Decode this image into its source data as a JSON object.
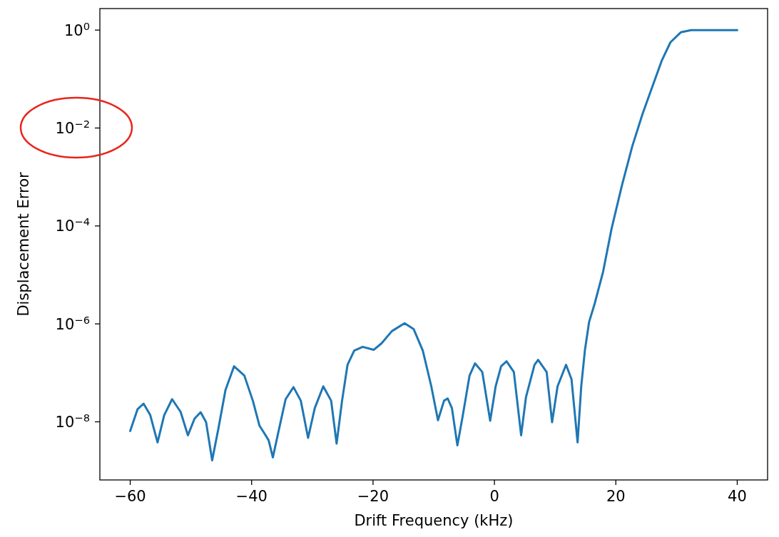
{
  "chart_data": {
    "type": "line",
    "xlabel": "Drift Frequency (kHz)",
    "ylabel": "Displacement Error",
    "log": true,
    "grid": false,
    "xlim": [
      -65,
      45
    ],
    "ylim": [
      6.5e-10,
      2.75
    ],
    "xticks": [
      {
        "value": -60,
        "label": "−60"
      },
      {
        "value": -40,
        "label": "−40"
      },
      {
        "value": -20,
        "label": "−20"
      },
      0,
      20,
      40
    ],
    "yticks": [
      {
        "value": 1,
        "label": "10$^{0}$"
      },
      {
        "value": 0.01,
        "label": "10$^{−2}$"
      },
      {
        "value": 0.0001,
        "label": "10$^{−4}$"
      },
      {
        "value": 1e-06,
        "label": "10$^{−6}$"
      },
      {
        "value": 1e-08,
        "label": "10$^{−8}$"
      }
    ],
    "series": [
      {
        "color": "#1f77b4",
        "x": [
          -60,
          -58.8,
          -57.8,
          -56.7,
          -55.5,
          -54.4,
          -53.1,
          -51.7,
          -50.5,
          -49.4,
          -48.4,
          -47.5,
          -46.5,
          -45.5,
          -44.3,
          -42.9,
          -41.2,
          -39.8,
          -38.7,
          -38.0,
          -37.2,
          -36.5,
          -35.5,
          -34.4,
          -33.1,
          -31.9,
          -30.7,
          -29.6,
          -28.2,
          -26.9,
          -26.0,
          -25.1,
          -24.2,
          -23.1,
          -21.7,
          -19.9,
          -18.6,
          -16.9,
          -14.8,
          -13.3,
          -11.8,
          -10.4,
          -9.3,
          -8.3,
          -7.7,
          -7.0,
          -6.1,
          -5.2,
          -4.1,
          -3.2,
          -2.0,
          -0.7,
          0.2,
          1.1,
          2.0,
          3.2,
          4.4,
          5.2,
          6.6,
          7.2,
          8.6,
          9.5,
          10.4,
          11.8,
          12.7,
          13.7,
          14.3,
          14.9,
          15.6,
          16.5,
          17.9,
          19.3,
          21.0,
          22.7,
          24.4,
          26.1,
          27.6,
          29.0,
          30.7,
          32.4,
          40
        ],
        "values": [
          6.5e-09,
          1.8e-08,
          2.35e-08,
          1.37e-08,
          3.8e-09,
          1.37e-08,
          2.9e-08,
          1.6e-08,
          5.3e-09,
          1.16e-08,
          1.57e-08,
          9.8e-09,
          1.64e-09,
          7e-09,
          4.5e-08,
          1.36e-07,
          8.8e-08,
          2.7e-08,
          8.3e-09,
          6.1e-09,
          4.2e-09,
          1.88e-09,
          7e-09,
          2.9e-08,
          5.1e-08,
          2.7e-08,
          4.7e-09,
          1.9e-08,
          5.3e-08,
          2.7e-08,
          3.6e-09,
          2.7e-08,
          1.46e-07,
          2.85e-07,
          3.4e-07,
          2.95e-07,
          4e-07,
          7.1e-07,
          1.03e-06,
          7.8e-07,
          2.85e-07,
          5.3e-08,
          1.08e-08,
          2.7e-08,
          3e-08,
          1.9e-08,
          3.3e-09,
          1.37e-08,
          8.8e-08,
          1.56e-07,
          1.04e-07,
          1.05e-08,
          5.3e-08,
          1.36e-07,
          1.72e-07,
          1.04e-07,
          5.3e-09,
          3.2e-08,
          1.46e-07,
          1.84e-07,
          1.04e-07,
          9.8e-09,
          5.3e-08,
          1.46e-07,
          7.4e-08,
          3.8e-09,
          5.3e-08,
          2.85e-07,
          1.1e-06,
          2.55e-06,
          1.16e-05,
          8.8e-05,
          0.00067,
          0.0042,
          0.0194,
          0.0746,
          0.243,
          0.564,
          0.9,
          1,
          1
        ]
      }
    ]
  }
}
